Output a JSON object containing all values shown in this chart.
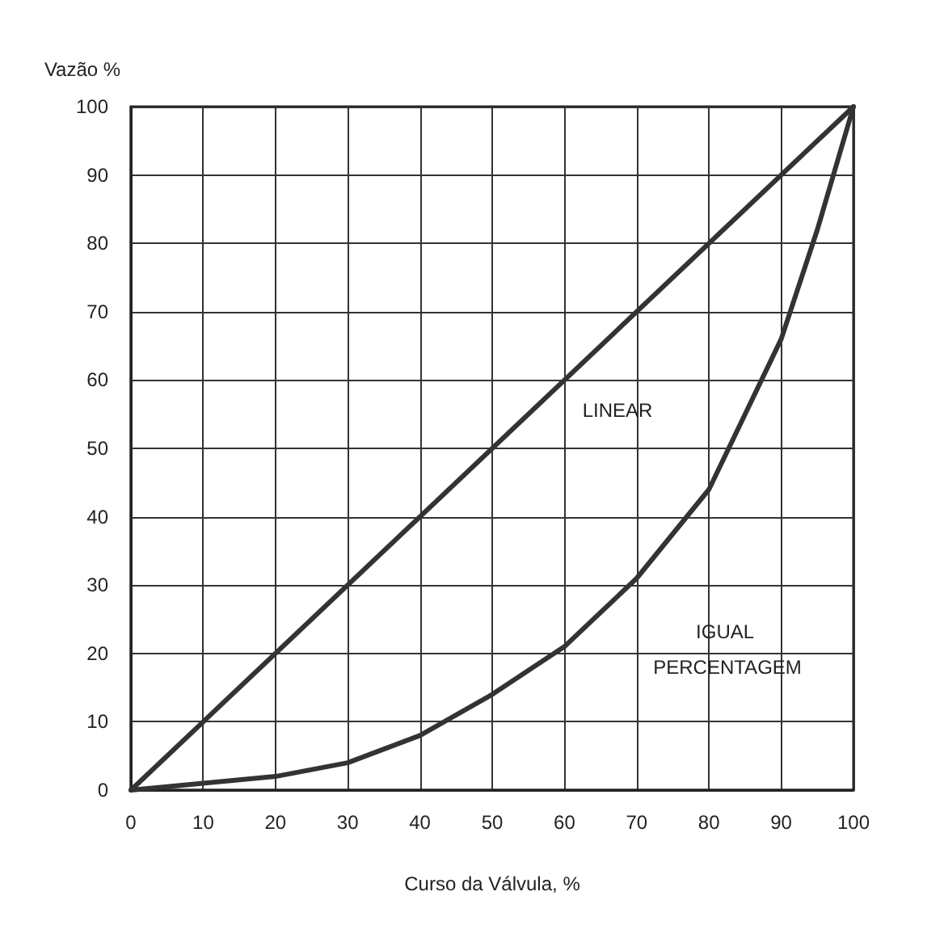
{
  "chart_data": {
    "type": "line",
    "xlabel": "Curso da Válvula, %",
    "ylabel": "Vazão %",
    "xlim": [
      0,
      100
    ],
    "ylim": [
      0,
      100
    ],
    "xticks": [
      0,
      10,
      20,
      30,
      40,
      50,
      60,
      70,
      80,
      90,
      100
    ],
    "yticks": [
      0,
      10,
      20,
      30,
      40,
      50,
      60,
      70,
      80,
      90,
      100
    ],
    "grid": true,
    "series": [
      {
        "color": "#333333",
        "x": [
          0,
          100
        ],
        "values": [
          0,
          100
        ]
      },
      {
        "color": "#333333",
        "x": [
          0,
          10,
          20,
          30,
          40,
          50,
          60,
          70,
          80,
          90,
          95,
          100
        ],
        "values": [
          0,
          1,
          2,
          4,
          8,
          14,
          21,
          31,
          44,
          66,
          82,
          100
        ]
      }
    ],
    "annotations": [
      "LINEAR",
      "IGUAL PERCENTAGEM"
    ]
  }
}
